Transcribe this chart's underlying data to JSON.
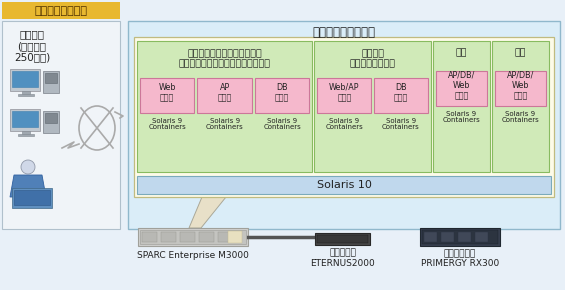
{
  "bg_color": "#e8f0f8",
  "title_text": "営業支援システム",
  "title_bg": "#e8b830",
  "title_fg": "#4a2c00",
  "outer_label": "日野自動車株式会社",
  "outer_bg": "#daedf8",
  "outer_border": "#90b8cc",
  "inner_bg": "#fdfbe8",
  "inner_border": "#c0bb80",
  "green_bg": "#d0eab8",
  "green_border": "#88bb60",
  "pink_bg": "#f5b8cc",
  "pink_border": "#cc7799",
  "solaris10_bg": "#c0d8ed",
  "solaris10_border": "#7aaabb",
  "left_bg": "#f0f4f8",
  "left_border": "#b0c0cc",
  "systems": [
    {
      "label": "トラックチョイスシステム、\nバス見積支援システム、シャシなび",
      "servers": [
        "Web\nサーバ",
        "AP\nサーバ",
        "DB\nサーバ"
      ],
      "cols": 3
    },
    {
      "label": "上物架装\n見積支援システム",
      "servers": [
        "Web/AP\nサーバ",
        "DB\nサーバ"
      ],
      "cols": 2
    },
    {
      "label": "開発",
      "servers": [
        "AP/DB/\nWeb\nサーバ"
      ],
      "cols": 1
    },
    {
      "label": "検証",
      "servers": [
        "AP/DB/\nWeb\nサーバ"
      ],
      "cols": 1
    }
  ],
  "left_title1": "販売会社",
  "left_title2": "(４０数社",
  "left_title3": "250拠点)",
  "solaris10": "Solaris 10",
  "solaris9": "Solaris 9\nContainers",
  "hw_sparc_label": "SPARC Enterprise M3000",
  "hw_storage_line1": "ストレージ",
  "hw_storage_line2": "ETERNUS2000",
  "hw_mail_line1": "メールサーバ",
  "hw_mail_line2": "PRIMERGY RX300"
}
